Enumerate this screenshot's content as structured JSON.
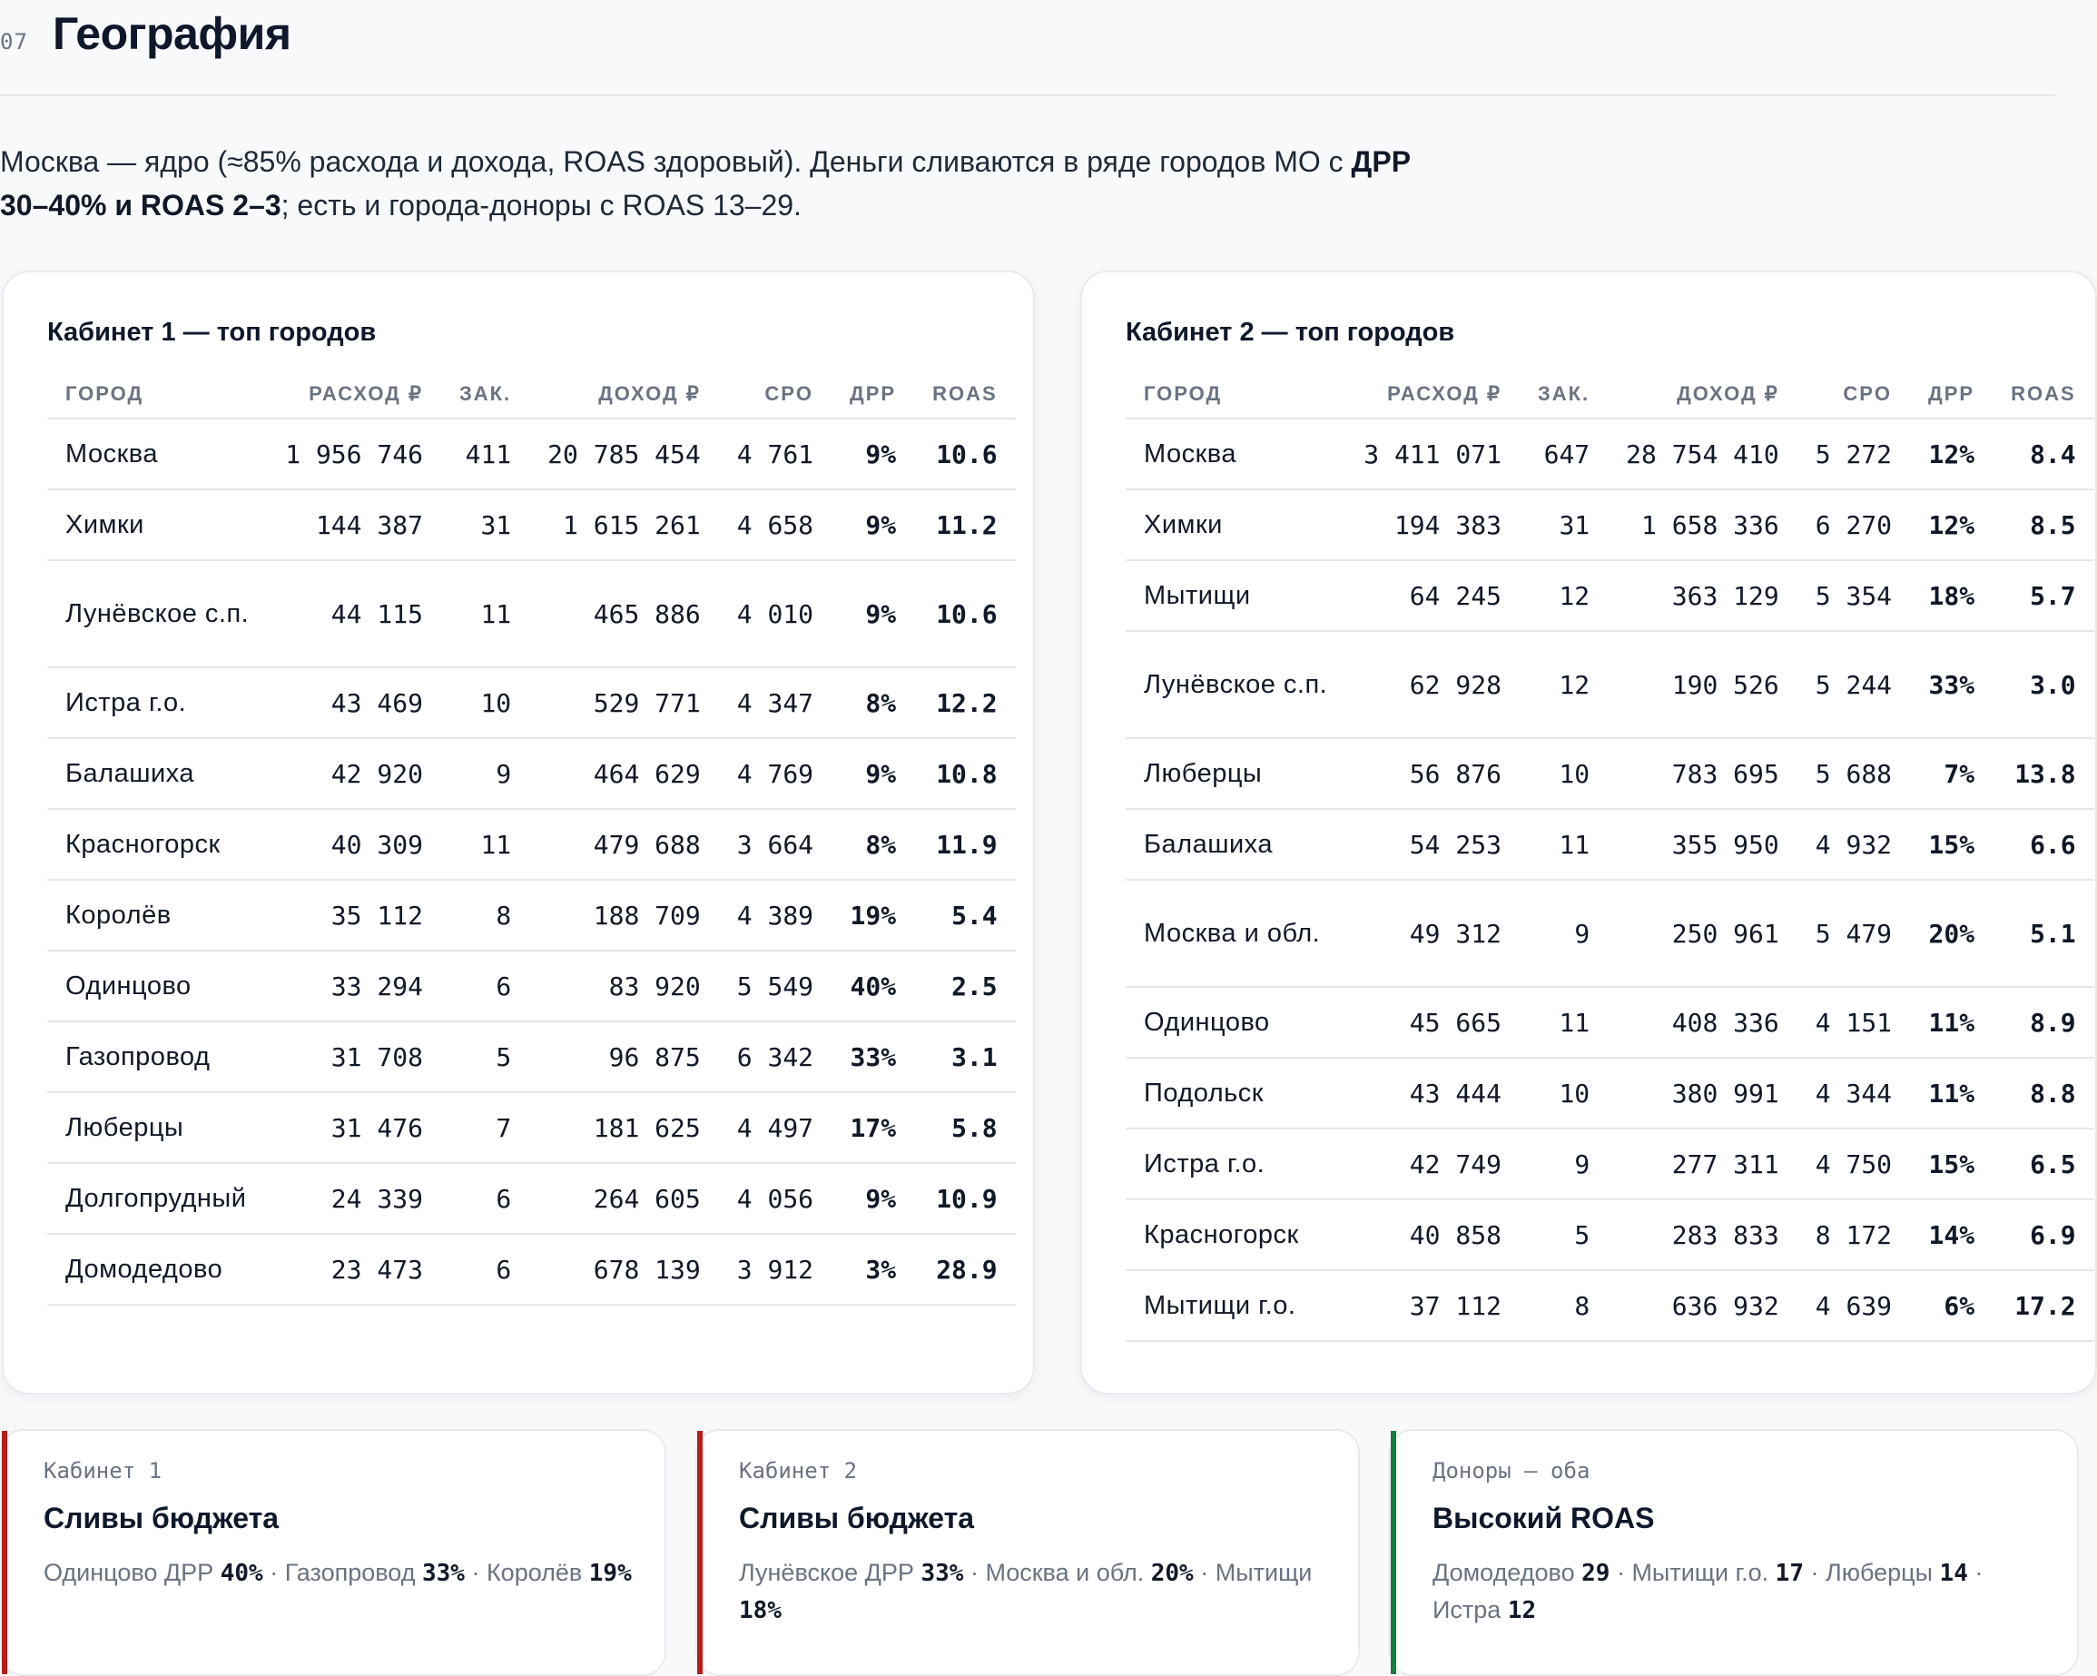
{
  "section": {
    "number": "07",
    "title": "География"
  },
  "intro": {
    "part1": "Москва — ядро (≈85% расхода и дохода, ROAS здоровый). Деньги сливаются в ряде городов МО с ",
    "bold": "ДРР 30–40% и ROAS 2–3",
    "part2": "; есть и города-доноры с ROAS 13–29."
  },
  "colors": {
    "good": "#15803d",
    "warn": "#b45309",
    "bad": "#b91c1c"
  },
  "tables": [
    {
      "title": "Кабинет 1 — топ городов",
      "columns": [
        "Город",
        "Расход ₽",
        "Зак.",
        "Доход ₽",
        "CPO",
        "ДРР",
        "ROAS"
      ],
      "rows": [
        {
          "city": "Москва",
          "spend": "1 956 746",
          "orders": "411",
          "revenue": "20 785 454",
          "cpo": "4 761",
          "drr": "9%",
          "roas": "10.6",
          "status": "good"
        },
        {
          "city": "Химки",
          "spend": "144 387",
          "orders": "31",
          "revenue": "1 615 261",
          "cpo": "4 658",
          "drr": "9%",
          "roas": "11.2",
          "status": "good"
        },
        {
          "city": "Лунёвское с.п.",
          "spend": "44 115",
          "orders": "11",
          "revenue": "465 886",
          "cpo": "4 010",
          "drr": "9%",
          "roas": "10.6",
          "status": "good"
        },
        {
          "city": "Истра г.о.",
          "spend": "43 469",
          "orders": "10",
          "revenue": "529 771",
          "cpo": "4 347",
          "drr": "8%",
          "roas": "12.2",
          "status": "good"
        },
        {
          "city": "Балашиха",
          "spend": "42 920",
          "orders": "9",
          "revenue": "464 629",
          "cpo": "4 769",
          "drr": "9%",
          "roas": "10.8",
          "status": "good"
        },
        {
          "city": "Красногорск",
          "spend": "40 309",
          "orders": "11",
          "revenue": "479 688",
          "cpo": "3 664",
          "drr": "8%",
          "roas": "11.9",
          "status": "good"
        },
        {
          "city": "Королёв",
          "spend": "35 112",
          "orders": "8",
          "revenue": "188 709",
          "cpo": "4 389",
          "drr": "19%",
          "roas": "5.4",
          "status": "warn"
        },
        {
          "city": "Одинцово",
          "spend": "33 294",
          "orders": "6",
          "revenue": "83 920",
          "cpo": "5 549",
          "drr": "40%",
          "roas": "2.5",
          "status": "bad"
        },
        {
          "city": "Газопровод",
          "spend": "31 708",
          "orders": "5",
          "revenue": "96 875",
          "cpo": "6 342",
          "drr": "33%",
          "roas": "3.1",
          "status": "bad"
        },
        {
          "city": "Люберцы",
          "spend": "31 476",
          "orders": "7",
          "revenue": "181 625",
          "cpo": "4 497",
          "drr": "17%",
          "roas": "5.8",
          "status": "warn"
        },
        {
          "city": "Долгопрудный",
          "spend": "24 339",
          "orders": "6",
          "revenue": "264 605",
          "cpo": "4 056",
          "drr": "9%",
          "roas": "10.9",
          "status": "good"
        },
        {
          "city": "Домодедово",
          "spend": "23 473",
          "orders": "6",
          "revenue": "678 139",
          "cpo": "3 912",
          "drr": "3%",
          "roas": "28.9",
          "status": "good"
        }
      ]
    },
    {
      "title": "Кабинет 2 — топ городов",
      "columns": [
        "Город",
        "Расход ₽",
        "Зак.",
        "Доход ₽",
        "CPO",
        "ДРР",
        "ROAS"
      ],
      "rows": [
        {
          "city": "Москва",
          "spend": "3 411 071",
          "orders": "647",
          "revenue": "28 754 410",
          "cpo": "5 272",
          "drr": "12%",
          "roas": "8.4",
          "status": "good"
        },
        {
          "city": "Химки",
          "spend": "194 383",
          "orders": "31",
          "revenue": "1 658 336",
          "cpo": "6 270",
          "drr": "12%",
          "roas": "8.5",
          "status": "good"
        },
        {
          "city": "Мытищи",
          "spend": "64 245",
          "orders": "12",
          "revenue": "363 129",
          "cpo": "5 354",
          "drr": "18%",
          "roas": "5.7",
          "status": "warn"
        },
        {
          "city": "Лунёвское с.п.",
          "spend": "62 928",
          "orders": "12",
          "revenue": "190 526",
          "cpo": "5 244",
          "drr": "33%",
          "roas": "3.0",
          "status": "bad"
        },
        {
          "city": "Люберцы",
          "spend": "56 876",
          "orders": "10",
          "revenue": "783 695",
          "cpo": "5 688",
          "drr": "7%",
          "roas": "13.8",
          "status": "good"
        },
        {
          "city": "Балашиха",
          "spend": "54 253",
          "orders": "11",
          "revenue": "355 950",
          "cpo": "4 932",
          "drr": "15%",
          "roas": "6.6",
          "status": "warn"
        },
        {
          "city": "Москва и обл.",
          "spend": "49 312",
          "orders": "9",
          "revenue": "250 961",
          "cpo": "5 479",
          "drr": "20%",
          "roas": "5.1",
          "status": "warn"
        },
        {
          "city": "Одинцово",
          "spend": "45 665",
          "orders": "11",
          "revenue": "408 336",
          "cpo": "4 151",
          "drr": "11%",
          "roas": "8.9",
          "status": "good"
        },
        {
          "city": "Подольск",
          "spend": "43 444",
          "orders": "10",
          "revenue": "380 991",
          "cpo": "4 344",
          "drr": "11%",
          "roas": "8.8",
          "status": "good"
        },
        {
          "city": "Истра г.о.",
          "spend": "42 749",
          "orders": "9",
          "revenue": "277 311",
          "cpo": "4 750",
          "drr": "15%",
          "roas": "6.5",
          "status": "warn"
        },
        {
          "city": "Красногорск",
          "spend": "40 858",
          "orders": "5",
          "revenue": "283 833",
          "cpo": "8 172",
          "drr": "14%",
          "roas": "6.9",
          "status": "good-warn"
        },
        {
          "city": "Мытищи г.о.",
          "spend": "37 112",
          "orders": "8",
          "revenue": "636 932",
          "cpo": "4 639",
          "drr": "6%",
          "roas": "17.2",
          "status": "good"
        }
      ]
    }
  ],
  "callouts": [
    {
      "kicker": "Кабинет 1",
      "title": "Сливы бюджета",
      "accent": "red",
      "items": [
        {
          "label": "Одинцово ДРР",
          "value": "40%"
        },
        {
          "label": "Газопровод",
          "value": "33%"
        },
        {
          "label": "Королёв",
          "value": "19%"
        }
      ]
    },
    {
      "kicker": "Кабинет 2",
      "title": "Сливы бюджета",
      "accent": "red",
      "items": [
        {
          "label": "Лунёвское ДРР",
          "value": "33%"
        },
        {
          "label": "Москва и обл.",
          "value": "20%"
        },
        {
          "label": "Мытищи",
          "value": "18%"
        }
      ]
    },
    {
      "kicker": "Доноры — оба",
      "title": "Высокий ROAS",
      "accent": "green",
      "items": [
        {
          "label": "Домодедово",
          "value": "29"
        },
        {
          "label": "Мытищи г.о.",
          "value": "17"
        },
        {
          "label": "Люберцы",
          "value": "14"
        },
        {
          "label": "Истра",
          "value": "12"
        }
      ]
    }
  ]
}
